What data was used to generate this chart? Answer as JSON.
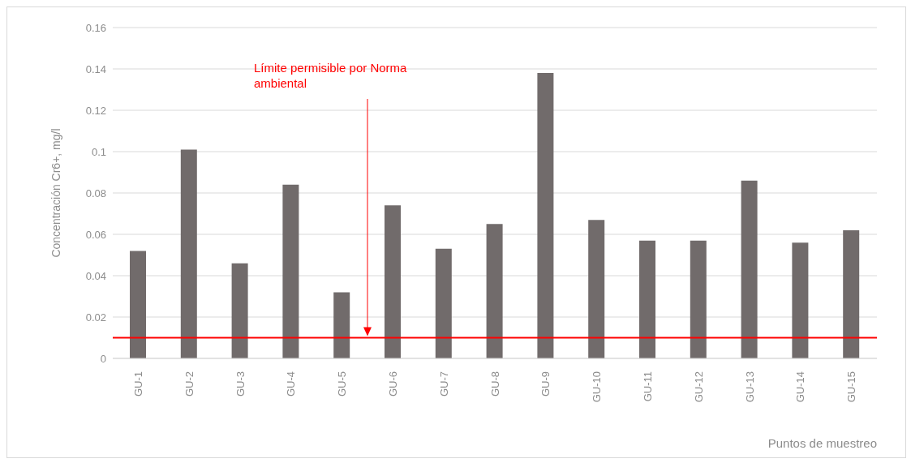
{
  "chart_data": {
    "type": "bar",
    "xlabel": "Puntos de muestreo",
    "ylabel": "Concentración Cr6+, mg/l",
    "categories": [
      "GU-1",
      "GU-2",
      "GU-3",
      "GU-4",
      "GU-5",
      "GU-6",
      "GU-7",
      "GU-8",
      "GU-9",
      "GU-10",
      "GU-11",
      "GU-12",
      "GU-13",
      "GU-14",
      "GU-15"
    ],
    "values": [
      0.052,
      0.101,
      0.046,
      0.084,
      0.032,
      0.074,
      0.053,
      0.065,
      0.138,
      0.067,
      0.057,
      0.057,
      0.086,
      0.056,
      0.062
    ],
    "color": "#716b6b",
    "ylim": [
      0,
      0.16
    ],
    "yticks": [
      0,
      0.02,
      0.04,
      0.06,
      0.08,
      0.1,
      0.12,
      0.14,
      0.16
    ],
    "grid": "y",
    "ref_lines": [
      {
        "axis": "y",
        "value": 0.01,
        "label": "Límite permisible por Norma ambiental",
        "color": "#ff0000"
      }
    ]
  }
}
